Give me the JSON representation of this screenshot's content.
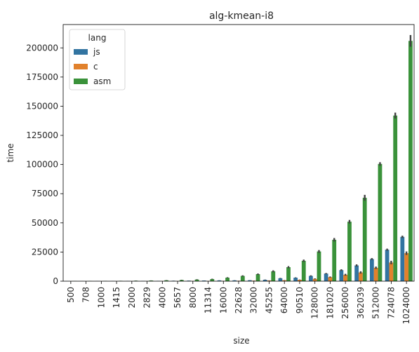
{
  "chart_data": {
    "type": "bar",
    "title": "alg-kmean-i8",
    "xlabel": "size",
    "ylabel": "time",
    "ylim": [
      0,
      220000
    ],
    "yticks": [
      0,
      25000,
      50000,
      75000,
      100000,
      125000,
      150000,
      175000,
      200000
    ],
    "yticks_labels": [
      "0",
      "25000",
      "50000",
      "75000",
      "100000",
      "125000",
      "150000",
      "175000",
      "200000"
    ],
    "categories": [
      "500",
      "708",
      "1000",
      "1415",
      "2000",
      "2829",
      "4000",
      "5657",
      "8000",
      "11314",
      "16000",
      "22628",
      "32000",
      "45255",
      "64000",
      "90510",
      "128000",
      "181020",
      "256000",
      "362039",
      "512000",
      "724078",
      "1024000"
    ],
    "legend": {
      "title": "lang",
      "placement": "top-left"
    },
    "series": [
      {
        "name": "js",
        "color": "#3274a1",
        "values": [
          60,
          80,
          100,
          130,
          160,
          200,
          250,
          350,
          450,
          550,
          650,
          700,
          800,
          1200,
          2500,
          3000,
          4500,
          6500,
          9500,
          13500,
          19000,
          27000,
          38000
        ],
        "errors": [
          20,
          20,
          20,
          20,
          30,
          30,
          40,
          50,
          50,
          60,
          80,
          80,
          100,
          200,
          300,
          300,
          500,
          500,
          700,
          900,
          800,
          900,
          1000
        ]
      },
      {
        "name": "c",
        "color": "#e1812c",
        "values": [
          20,
          30,
          40,
          50,
          60,
          80,
          100,
          130,
          170,
          220,
          280,
          350,
          450,
          600,
          800,
          1200,
          2000,
          3500,
          5500,
          7500,
          11500,
          16000,
          24000
        ],
        "errors": [
          10,
          10,
          10,
          10,
          10,
          20,
          20,
          30,
          30,
          40,
          50,
          60,
          80,
          100,
          150,
          200,
          400,
          500,
          800,
          1000,
          1000,
          1500,
          1500
        ]
      },
      {
        "name": "asm",
        "color": "#3a923a",
        "values": [
          100,
          150,
          200,
          280,
          400,
          550,
          750,
          1000,
          1400,
          1800,
          3000,
          4500,
          6000,
          8500,
          12000,
          17500,
          25500,
          35500,
          51000,
          71500,
          100500,
          142000,
          206000
        ],
        "errors": [
          30,
          40,
          50,
          60,
          80,
          100,
          150,
          200,
          250,
          300,
          400,
          500,
          600,
          800,
          900,
          1000,
          1200,
          1500,
          1500,
          2500,
          1500,
          2500,
          5000
        ]
      }
    ]
  }
}
